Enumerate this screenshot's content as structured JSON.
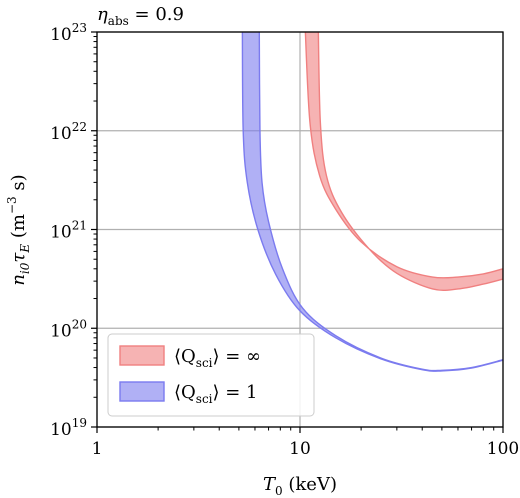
{
  "chart_data": {
    "type": "area",
    "title": "η_abs = 0.9",
    "title_parts": {
      "symbol": "η",
      "sub": "abs",
      "rest": " = 0.9"
    },
    "xlabel": "T₀ (keV)",
    "xlabel_parts": {
      "symbol": "T",
      "sub": "0",
      "rest": " (keV)"
    },
    "ylabel": "n_i0 τ_E (m⁻³ s)",
    "ylabel_parts": {
      "symbol": "n",
      "sub1": "i0",
      "symbol2": "τ",
      "sub2": "E",
      "unit_a": " (m",
      "unit_exp": "−3",
      "unit_b": " s)"
    },
    "xscale": "log",
    "yscale": "log",
    "xlim": [
      1,
      100
    ],
    "ylim": [
      1e+19,
      1e+23
    ],
    "x_ticks": [
      1,
      10,
      100
    ],
    "x_tick_labels": [
      "1",
      "10",
      "100"
    ],
    "y_ticks": [
      1e+19,
      1e+20,
      1e+21,
      1e+22,
      1e+23
    ],
    "y_tick_labels": [
      {
        "base": "10",
        "exp": "19"
      },
      {
        "base": "10",
        "exp": "20"
      },
      {
        "base": "10",
        "exp": "21"
      },
      {
        "base": "10",
        "exp": "22"
      },
      {
        "base": "10",
        "exp": "23"
      }
    ],
    "grid": true,
    "legend_position": "lower-left",
    "series": [
      {
        "name": "⟨Q_sci⟩ = ∞",
        "label_parts": {
          "pre": "⟨Q",
          "sub": "sci",
          "post": "⟩ = ∞"
        },
        "color": "#f08080",
        "fill_opacity": 0.6,
        "lower": [
          [
            10.6,
            1e+23
          ],
          [
            11.2,
            1.2e+22
          ],
          [
            12.5,
            3.5e+21
          ],
          [
            15,
            1.6e+21
          ],
          [
            20,
            7.5e+20
          ],
          [
            30,
            4.2e+20
          ],
          [
            45,
            3.3e+20
          ],
          [
            60,
            3.3e+20
          ],
          [
            80,
            3.55e+20
          ],
          [
            100,
            4e+20
          ]
        ],
        "upper": [
          [
            12.3,
            1e+23
          ],
          [
            12.6,
            1.2e+22
          ],
          [
            13.5,
            3.5e+21
          ],
          [
            16,
            1.5e+21
          ],
          [
            22,
            6.3e+20
          ],
          [
            30,
            3.6e+20
          ],
          [
            45,
            2.5e+20
          ],
          [
            60,
            2.5e+20
          ],
          [
            80,
            2.8e+20
          ],
          [
            100,
            3.15e+20
          ]
        ]
      },
      {
        "name": "⟨Q_sci⟩ = 1",
        "label_parts": {
          "pre": "⟨Q",
          "sub": "sci",
          "post": "⟩ = 1"
        },
        "color": "#7b7bef",
        "fill_opacity": 0.6,
        "lower": [
          [
            5.2,
            1e+23
          ],
          [
            5.25,
            1e+22
          ],
          [
            5.5,
            3e+21
          ],
          [
            6.2,
            1e+21
          ],
          [
            7.6,
            3.5e+20
          ],
          [
            10,
            1.5e+20
          ],
          [
            15,
            8e+19
          ],
          [
            25,
            4.9e+19
          ],
          [
            40,
            3.8e+19
          ],
          [
            50,
            3.7e+19
          ],
          [
            70,
            3.95e+19
          ],
          [
            100,
            4.75e+19
          ]
        ],
        "upper": [
          [
            6.3,
            1e+23
          ],
          [
            6.35,
            1e+22
          ],
          [
            6.5,
            3e+21
          ],
          [
            7,
            1.2e+21
          ],
          [
            8.2,
            4e+20
          ],
          [
            10.3,
            1.6e+20
          ],
          [
            15,
            8.4e+19
          ],
          [
            25,
            5e+19
          ],
          [
            40,
            3.85e+19
          ],
          [
            50,
            3.75e+19
          ],
          [
            70,
            4e+19
          ],
          [
            100,
            4.8e+19
          ]
        ]
      }
    ]
  }
}
